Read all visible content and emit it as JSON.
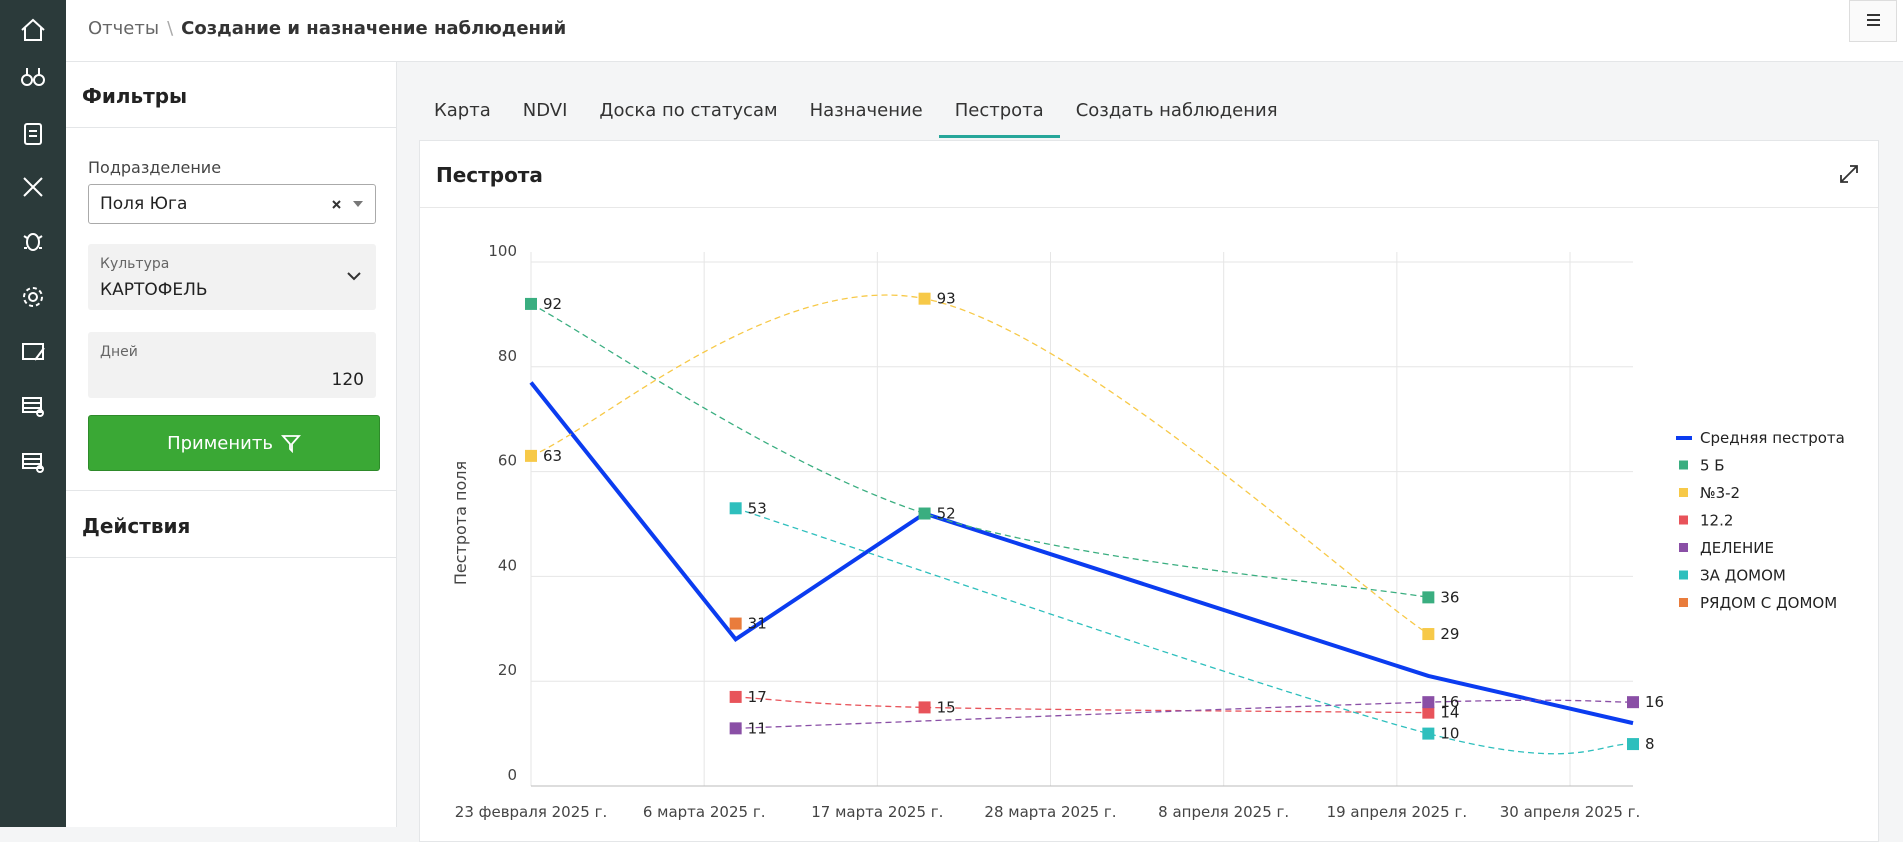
{
  "header": {
    "breadcrumb": [
      "Отчеты",
      "Создание и назначение наблюдений"
    ],
    "separator": "\\"
  },
  "filters": {
    "title": "Фильтры",
    "subdivision": {
      "label": "Подразделение",
      "value": "Поля Юга"
    },
    "culture": {
      "label": "Культура",
      "value": "КАРТОФЕЛЬ"
    },
    "days": {
      "label": "Дней",
      "value": 120
    },
    "apply": "Применить",
    "actions": "Действия"
  },
  "tabs": {
    "items": [
      "Карта",
      "NDVI",
      "Доска по статусам",
      "Назначение",
      "Пестрота",
      "Создать наблюдения"
    ],
    "active": 4
  },
  "panel": {
    "title": "Пестрота"
  },
  "chart_data": {
    "type": "line",
    "y_label": "Пестрота поля",
    "ylim": [
      0,
      100
    ],
    "yticks": [
      0,
      20,
      40,
      60,
      80,
      100
    ],
    "xlim": [
      "2025-02-23",
      "2025-05-04"
    ],
    "xticks": [
      {
        "value": "2025-02-23",
        "label": "23 февраля 2025 г."
      },
      {
        "value": "2025-03-06",
        "label": "6 марта 2025 г."
      },
      {
        "value": "2025-03-17",
        "label": "17 марта 2025 г."
      },
      {
        "value": "2025-03-28",
        "label": "28 марта 2025 г."
      },
      {
        "value": "2025-04-08",
        "label": "8 апреля 2025 г."
      },
      {
        "value": "2025-04-19",
        "label": "19 апреля 2025 г."
      },
      {
        "value": "2025-04-30",
        "label": "30 апреля 2025 г."
      }
    ],
    "grid": true,
    "legend": "right",
    "series": [
      {
        "name": "Средняя пестрота",
        "color": "#0b3cf0",
        "dashed": false,
        "x": [
          "2025-02-23",
          "2025-03-08",
          "2025-03-20",
          "2025-04-21",
          "2025-05-04"
        ],
        "values": [
          77,
          28,
          52,
          21,
          12
        ]
      },
      {
        "name": "5 Б",
        "color": "#3aae80",
        "dashed": true,
        "x": [
          "2025-02-23",
          "2025-03-20",
          "2025-04-21"
        ],
        "values": [
          92,
          52,
          36
        ]
      },
      {
        "name": "№3-2",
        "color": "#f7c948",
        "dashed": true,
        "x": [
          "2025-02-23",
          "2025-03-20",
          "2025-04-21"
        ],
        "values": [
          63,
          93,
          29
        ]
      },
      {
        "name": "12.2",
        "color": "#e8535a",
        "dashed": true,
        "x": [
          "2025-03-08",
          "2025-03-20",
          "2025-04-21"
        ],
        "values": [
          17,
          15,
          14
        ]
      },
      {
        "name": "ДЕЛЕНИЕ",
        "color": "#8a4fa6",
        "dashed": true,
        "x": [
          "2025-03-08",
          "2025-04-21",
          "2025-05-04"
        ],
        "values": [
          11,
          16,
          16
        ]
      },
      {
        "name": "ЗА ДОМОМ",
        "color": "#2ebfbd",
        "dashed": true,
        "x": [
          "2025-03-08",
          "2025-04-21",
          "2025-05-04"
        ],
        "values": [
          53,
          10,
          8
        ]
      },
      {
        "name": "РЯДОМ С ДОМОМ",
        "color": "#e97c3c",
        "dashed": true,
        "x": [
          "2025-03-08"
        ],
        "values": [
          31
        ]
      }
    ]
  }
}
